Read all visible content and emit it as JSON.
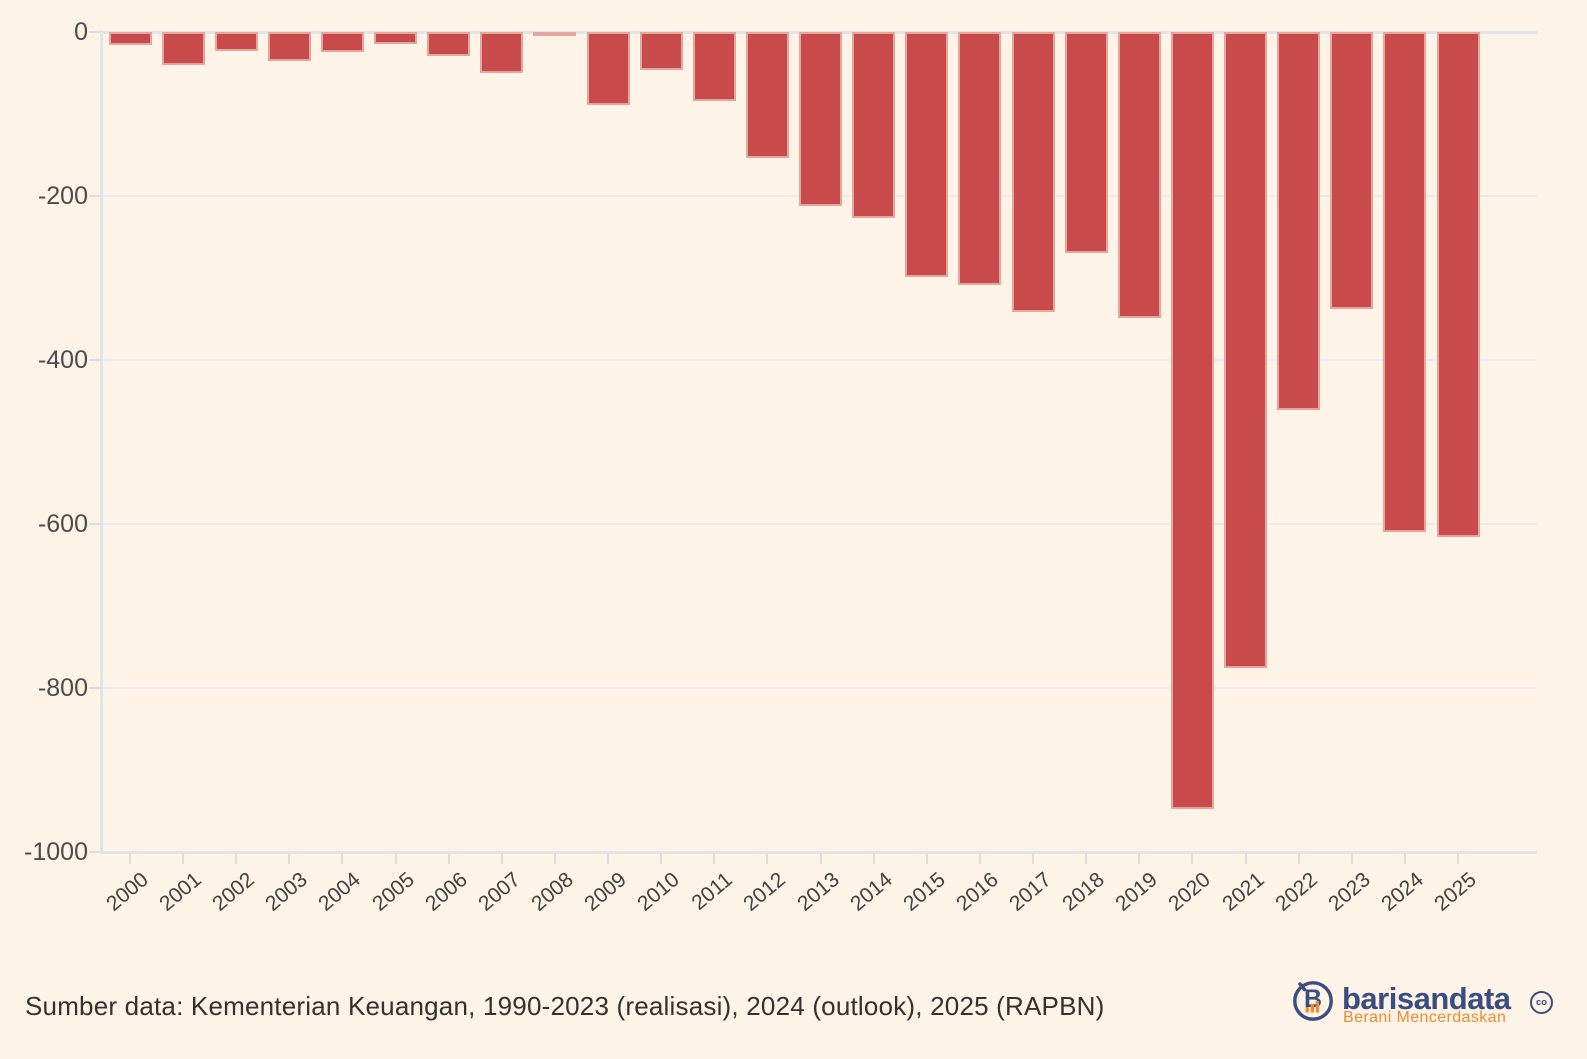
{
  "chart_data": {
    "type": "bar",
    "title": "",
    "xlabel": "",
    "ylabel": "",
    "categories": [
      "2000",
      "2001",
      "2002",
      "2003",
      "2004",
      "2005",
      "2006",
      "2007",
      "2008",
      "2009",
      "2010",
      "2011",
      "2012",
      "2013",
      "2014",
      "2015",
      "2016",
      "2017",
      "2018",
      "2019",
      "2020",
      "2021",
      "2022",
      "2023",
      "2024",
      "2025"
    ],
    "values": [
      -16.1,
      -40.5,
      -23.6,
      -35.1,
      -24.9,
      -14.4,
      -29.1,
      -49.8,
      -4.1,
      -88.6,
      -46.8,
      -84.4,
      -153.3,
      -211.7,
      -226.7,
      -298.5,
      -308.3,
      -341.0,
      -269.4,
      -348.7,
      -947.7,
      -775.1,
      -460.4,
      -337.3,
      -609.7,
      -616.2
    ],
    "ylim": [
      -1000,
      0
    ],
    "yticks": [
      0,
      -200,
      -400,
      -600,
      -800,
      -1000
    ],
    "ytick_labels": [
      "0",
      "-200",
      "-400",
      "-600",
      "-800",
      "-1000"
    ],
    "grid": true,
    "legend_position": "none",
    "bar_color": "#c94a4a",
    "x_label_rotation": -40
  },
  "footer": {
    "source_text": "Sumber data: Kementerian Keuangan, 1990-2023 (realisasi), 2024 (outlook), 2025 (RAPBN)"
  },
  "branding": {
    "wordmark": "barisandata",
    "badge": "co",
    "tagline": "Berani Mencerdaskan",
    "navy": "#3b4d80",
    "orange": "#ee8b2e"
  },
  "colors": {
    "background": "#fdf3e7",
    "bar": "#c94a4a",
    "gridline": "#ebebf0",
    "axis_text": "#4c4c4c"
  }
}
